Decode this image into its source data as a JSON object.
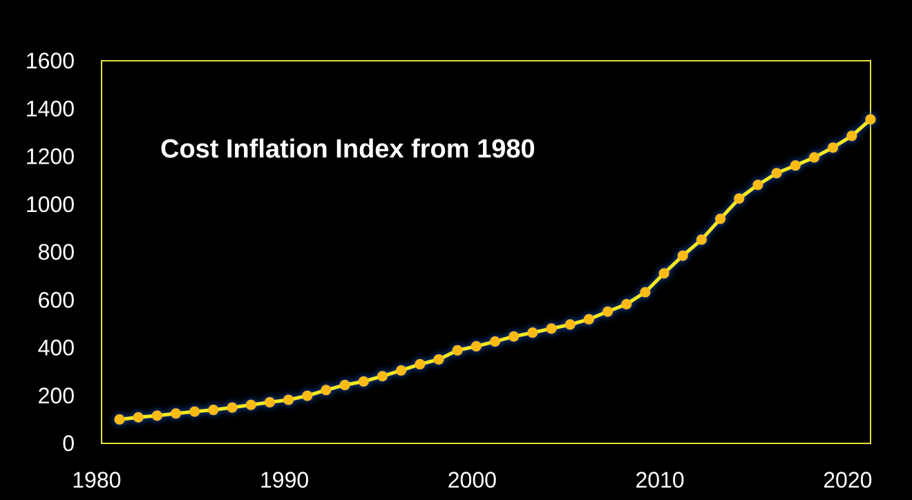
{
  "chart_data": {
    "type": "line",
    "title": "Cost Inflation Index from 1980",
    "xlabel": "",
    "ylabel": "",
    "xlim": [
      1980,
      2021
    ],
    "ylim": [
      0,
      1600
    ],
    "x_ticks": [
      1980,
      1990,
      2000,
      2010,
      2020
    ],
    "y_ticks": [
      0,
      200,
      400,
      600,
      800,
      1000,
      1200,
      1400,
      1600
    ],
    "grid": false,
    "colors": {
      "background": "#000000",
      "line": "#f2ea1e",
      "marker": "#fbbb14",
      "glow": "#1a5fd8",
      "frame": "#e6e23a",
      "text": "#ffffff"
    },
    "series": [
      {
        "x": [
          1981,
          1982,
          1983,
          1984,
          1985,
          1986,
          1987,
          1988,
          1989,
          1990,
          1991,
          1992,
          1993,
          1994,
          1995,
          1996,
          1997,
          1998,
          1999,
          2000,
          2001,
          2002,
          2003,
          2004,
          2005,
          2006,
          2007,
          2008,
          2009,
          2010,
          2011,
          2012,
          2013,
          2014,
          2015,
          2016,
          2017,
          2018,
          2019,
          2020,
          2021
        ],
        "values": [
          100,
          109,
          116,
          125,
          133,
          140,
          150,
          161,
          172,
          182,
          199,
          223,
          244,
          259,
          281,
          305,
          331,
          351,
          389,
          406,
          426,
          447,
          463,
          480,
          497,
          519,
          551,
          582,
          632,
          711,
          785,
          852,
          939,
          1024,
          1081,
          1130,
          1162,
          1196,
          1237,
          1286,
          1355
        ]
      }
    ]
  }
}
